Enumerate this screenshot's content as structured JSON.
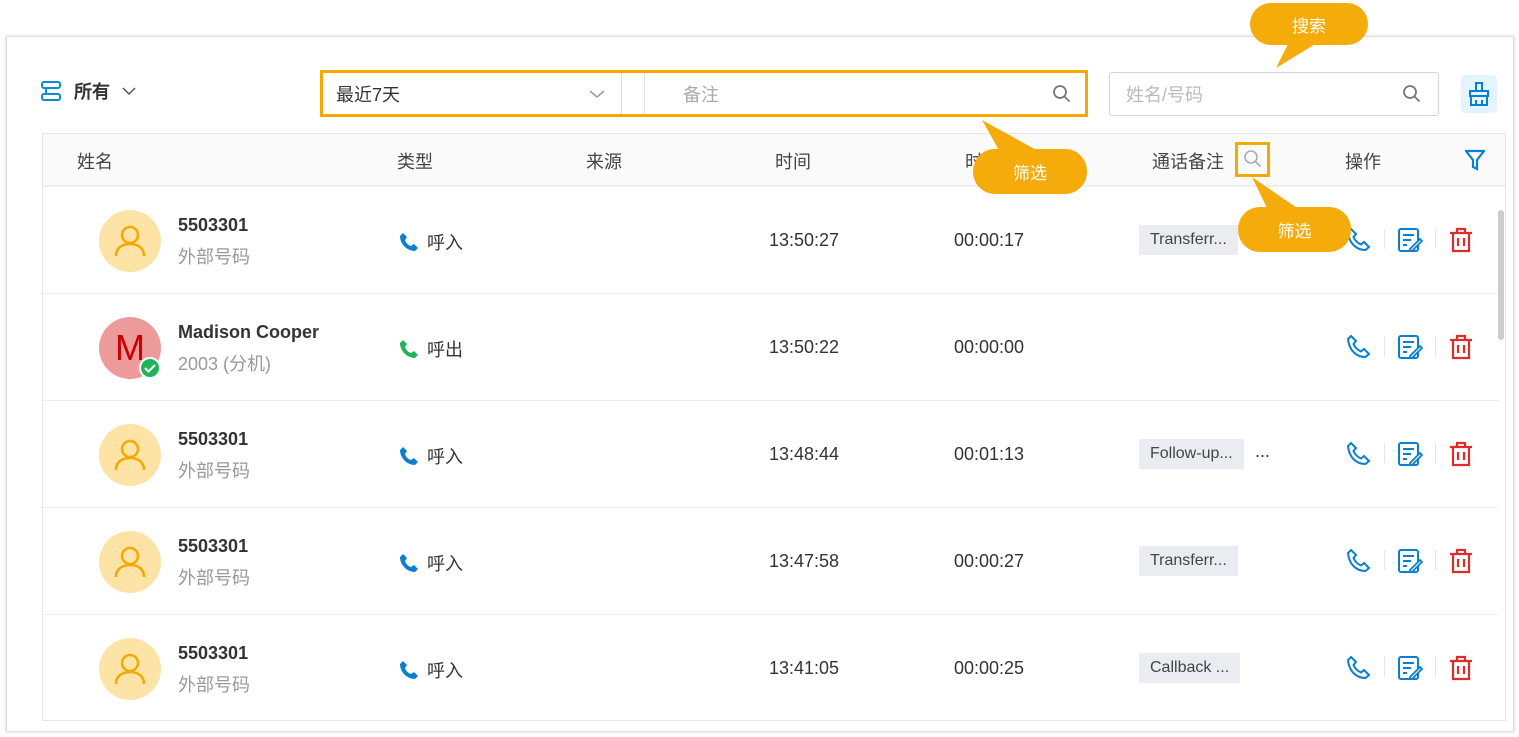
{
  "toolbar": {
    "scope": "所有",
    "date_range": "最近7天",
    "note_placeholder": "备注",
    "search_placeholder": "姓名/号码"
  },
  "table": {
    "headers": {
      "name": "姓名",
      "type": "类型",
      "source": "来源",
      "time": "时间",
      "duration": "时长",
      "notes": "通话备注",
      "actions": "操作"
    },
    "rows": [
      {
        "name": "5503301",
        "sub": "外部号码",
        "type": "呼入",
        "direction": "in",
        "time": "13:50:27",
        "duration": "00:00:17",
        "note": "Transferr...",
        "more": ""
      },
      {
        "name": "Madison Cooper",
        "sub": "2003 (分机)",
        "type": "呼出",
        "direction": "out",
        "time": "13:50:22",
        "duration": "00:00:00",
        "note": "",
        "more": "",
        "initial": "M"
      },
      {
        "name": "5503301",
        "sub": "外部号码",
        "type": "呼入",
        "direction": "in",
        "time": "13:48:44",
        "duration": "00:01:13",
        "note": "Follow-up...",
        "more": "..."
      },
      {
        "name": "5503301",
        "sub": "外部号码",
        "type": "呼入",
        "direction": "in",
        "time": "13:47:58",
        "duration": "00:00:27",
        "note": "Transferr...",
        "more": ""
      },
      {
        "name": "5503301",
        "sub": "外部号码",
        "type": "呼入",
        "direction": "in",
        "time": "13:41:05",
        "duration": "00:00:25",
        "note": "Callback ...",
        "more": ""
      }
    ]
  },
  "callouts": {
    "search": "搜索",
    "filter1": "筛选",
    "filter2": "筛选"
  },
  "colors": {
    "accent": "#0a7fd0",
    "highlight": "#f5a800",
    "incoming": "#0a7fd0",
    "outgoing": "#1fb45a",
    "delete": "#e02b2b"
  }
}
